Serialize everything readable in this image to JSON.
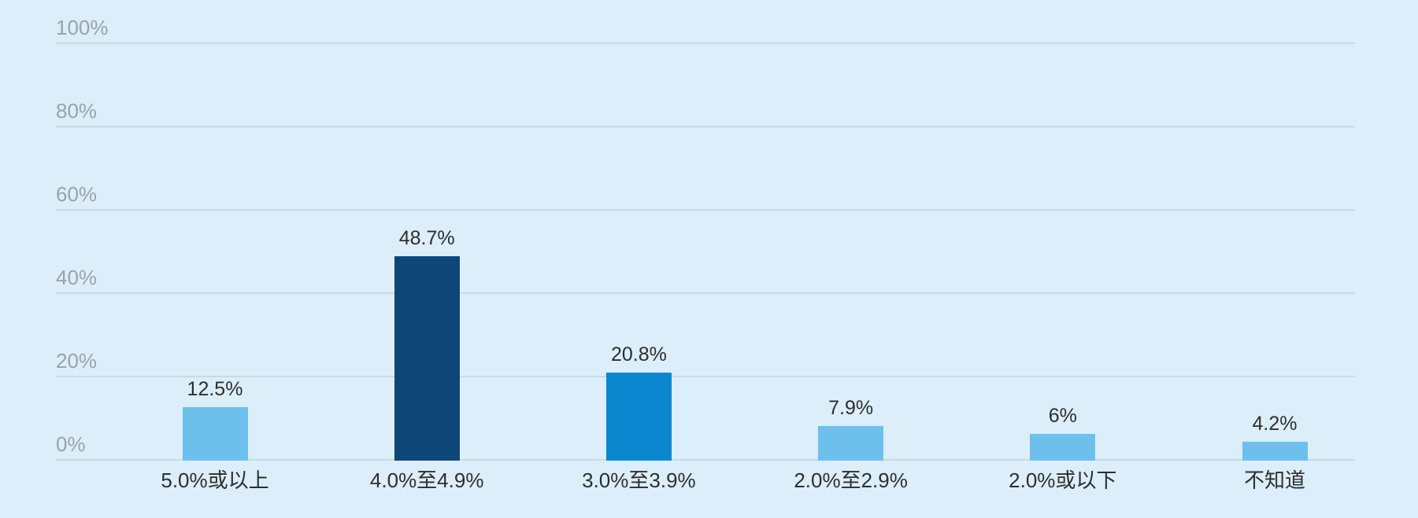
{
  "chart_data": {
    "type": "bar",
    "title": "",
    "xlabel": "",
    "ylabel": "",
    "categories": [
      "5.0%或以上",
      "4.0%至4.9%",
      "3.0%至3.9%",
      "2.0%至2.9%",
      "2.0%或以下",
      "不知道"
    ],
    "values": [
      12.5,
      48.7,
      20.8,
      7.9,
      6,
      4.2
    ],
    "value_labels": [
      "12.5%",
      "48.7%",
      "20.8%",
      "7.9%",
      "6%",
      "4.2%"
    ],
    "bar_colors": [
      "#6EC0EC",
      "#0E4678",
      "#0A87CF",
      "#6EC0EC",
      "#6EC0EC",
      "#6EC0EC"
    ],
    "ylim": [
      0,
      100
    ],
    "yticks": [
      0,
      20,
      40,
      60,
      80,
      100
    ],
    "ytick_labels": [
      "0%",
      "20%",
      "40%",
      "60%",
      "80%",
      "100%"
    ],
    "grid": true,
    "legend": false,
    "colors": {
      "background": "#DBEEF9",
      "gridline": "#C8DAE4",
      "axis_label": "#9BA3A9",
      "data_label": "#2E2E2E",
      "category_label": "#2E2E2E"
    }
  }
}
